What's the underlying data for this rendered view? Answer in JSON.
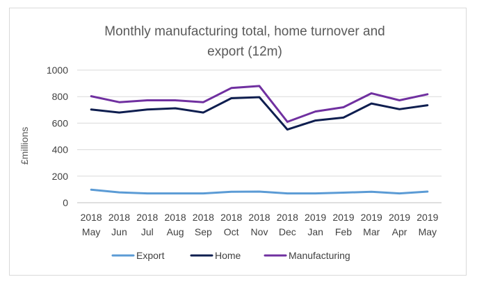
{
  "chart_data": {
    "type": "line",
    "title_lines": [
      "Monthly manufacturing total, home turnover and",
      "export (12m)"
    ],
    "xlabel": "",
    "ylabel": "£millions",
    "ylim": [
      0,
      1000
    ],
    "yticks": [
      0,
      200,
      400,
      600,
      800,
      1000
    ],
    "ytick_labels": [
      "0",
      "200",
      "400",
      "600",
      "800",
      "1000"
    ],
    "grid": true,
    "legend_position": "bottom",
    "categories": [
      [
        "2018",
        "May"
      ],
      [
        "2018",
        "Jun"
      ],
      [
        "2018",
        "Jul"
      ],
      [
        "2018",
        "Aug"
      ],
      [
        "2018",
        "Sep"
      ],
      [
        "2018",
        "Oct"
      ],
      [
        "2018",
        "Nov"
      ],
      [
        "2018",
        "Dec"
      ],
      [
        "2019",
        "Jan"
      ],
      [
        "2019",
        "Feb"
      ],
      [
        "2019",
        "Mar"
      ],
      [
        "2019",
        "Apr"
      ],
      [
        "2019",
        "May"
      ]
    ],
    "series": [
      {
        "name": "Export",
        "color": "#5b9bd5",
        "values": [
          98,
          78,
          70,
          70,
          70,
          82,
          84,
          70,
          70,
          76,
          82,
          70,
          84
        ]
      },
      {
        "name": "Home",
        "color": "#0e1e4f",
        "values": [
          703,
          680,
          703,
          712,
          680,
          788,
          796,
          552,
          620,
          642,
          748,
          705,
          735
        ]
      },
      {
        "name": "Manufacturing",
        "color": "#7030a0",
        "values": [
          803,
          758,
          772,
          772,
          758,
          865,
          880,
          610,
          688,
          720,
          825,
          772,
          818
        ]
      }
    ]
  }
}
